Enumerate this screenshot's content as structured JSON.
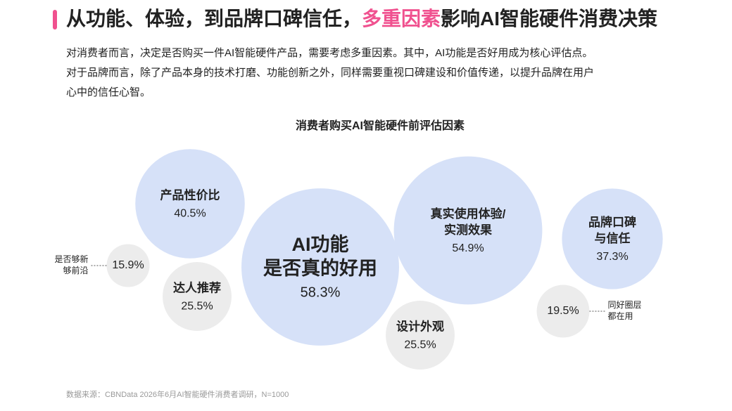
{
  "header": {
    "title_before": "从功能、体验，到品牌口碑信任，",
    "title_highlight": "多重因素",
    "title_after": "影响AI智能硬件消费决策",
    "paragraph": [
      "对消费者而言，决定是否购买一件AI智能硬件产品，需要考虑多重因素。其中，AI功能是否好用成为核心评估点。",
      "对于品牌而言，除了产品本身的技术打磨、功能创新之外，同样需要重视口碑建设和价值传递，以提升品牌在用户",
      "心中的信任心智。"
    ]
  },
  "chart_data": {
    "type": "bubble",
    "title": "消费者购买AI智能硬件前评估因素",
    "categories": [
      [
        "产品性价比"
      ],
      [
        "是否够新",
        "够前沿"
      ],
      [
        "达人推荐"
      ],
      [
        "AI功能",
        "是否真的好用"
      ],
      [
        "设计外观"
      ],
      [
        "真实使用体验/",
        "实测效果"
      ],
      [
        "品牌口碑",
        "与信任"
      ],
      [
        "同好圈层",
        "都在用"
      ]
    ],
    "values": [
      40.5,
      15.9,
      25.5,
      58.3,
      25.5,
      54.9,
      37.3,
      19.5
    ],
    "value_labels": [
      "40.5%",
      "15.9%",
      "25.5%",
      "58.3%",
      "25.5%",
      "54.9%",
      "37.3%",
      "19.5%"
    ],
    "colors": [
      "#d6e1f8",
      "#ececec",
      "#ececec",
      "#d6e1f8",
      "#ececec",
      "#d6e1f8",
      "#d6e1f8",
      "#ececec"
    ]
  },
  "footer": {
    "source": "数据来源：CBNData 2026年6月AI智能硬件消费者调研，N=1000"
  }
}
